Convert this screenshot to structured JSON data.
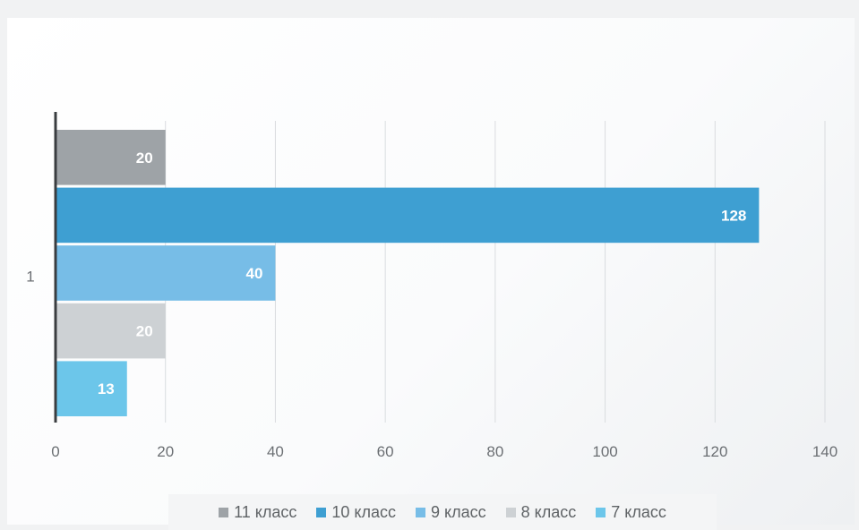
{
  "chart_data": {
    "type": "bar",
    "orientation": "horizontal",
    "categories": [
      "1"
    ],
    "series": [
      {
        "name": "11 класс",
        "values": [
          20
        ],
        "color": "#9ea3a7"
      },
      {
        "name": "10 класс",
        "values": [
          128
        ],
        "color": "#3e9fd2"
      },
      {
        "name": "9 класс",
        "values": [
          40
        ],
        "color": "#77bde7"
      },
      {
        "name": "8 класс",
        "values": [
          20
        ],
        "color": "#cdd1d4"
      },
      {
        "name": "7 класс",
        "values": [
          13
        ],
        "color": "#6cc6ea"
      }
    ],
    "data_labels": [
      "20",
      "128",
      "40",
      "20",
      "13"
    ],
    "xlim": [
      0,
      140
    ],
    "x_ticks": [
      "0",
      "20",
      "40",
      "60",
      "80",
      "100",
      "120",
      "140"
    ],
    "title": "",
    "xlabel": "",
    "ylabel": "",
    "grid": true,
    "legend_position": "bottom"
  }
}
